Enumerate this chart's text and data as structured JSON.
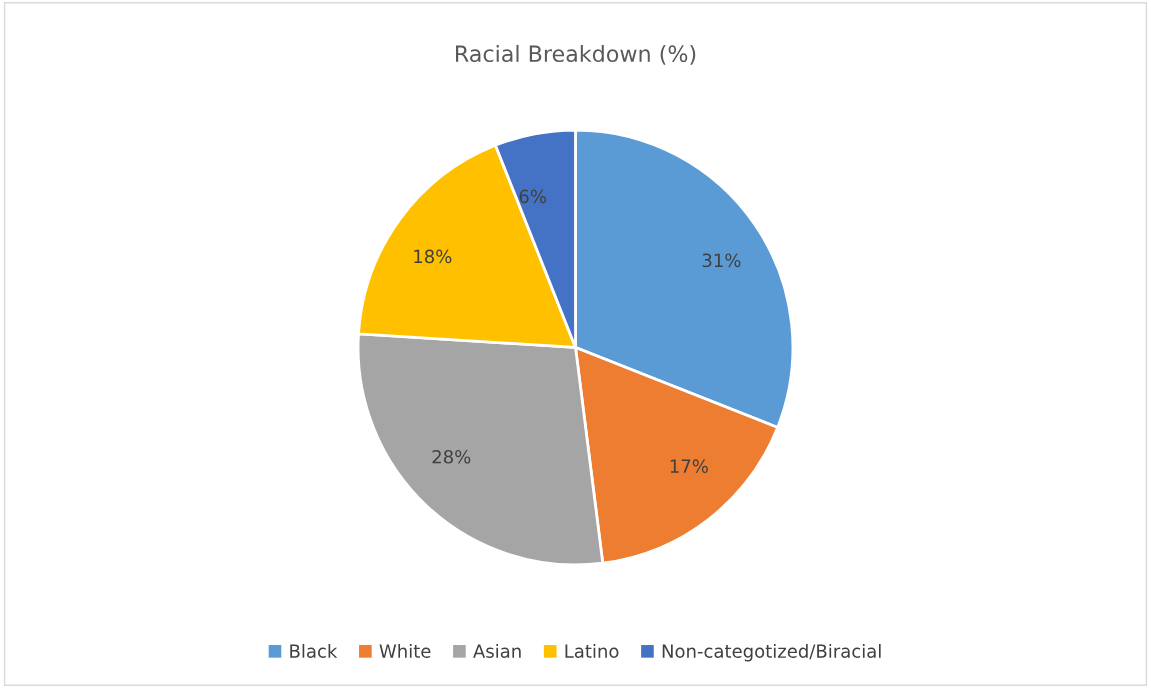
{
  "chart_data": {
    "type": "pie",
    "title": "Racial Breakdown (%)",
    "categories": [
      "Black",
      "White",
      "Asian",
      "Latino",
      "Non-categotized/Biracial"
    ],
    "values": [
      31,
      17,
      28,
      18,
      6
    ],
    "colors": [
      "#5b9bd5",
      "#ed7d31",
      "#a5a5a5",
      "#ffc000",
      "#4472c4"
    ],
    "value_labels": [
      "31%",
      "17%",
      "28%",
      "18%",
      "6%"
    ],
    "legend": "bottom"
  }
}
